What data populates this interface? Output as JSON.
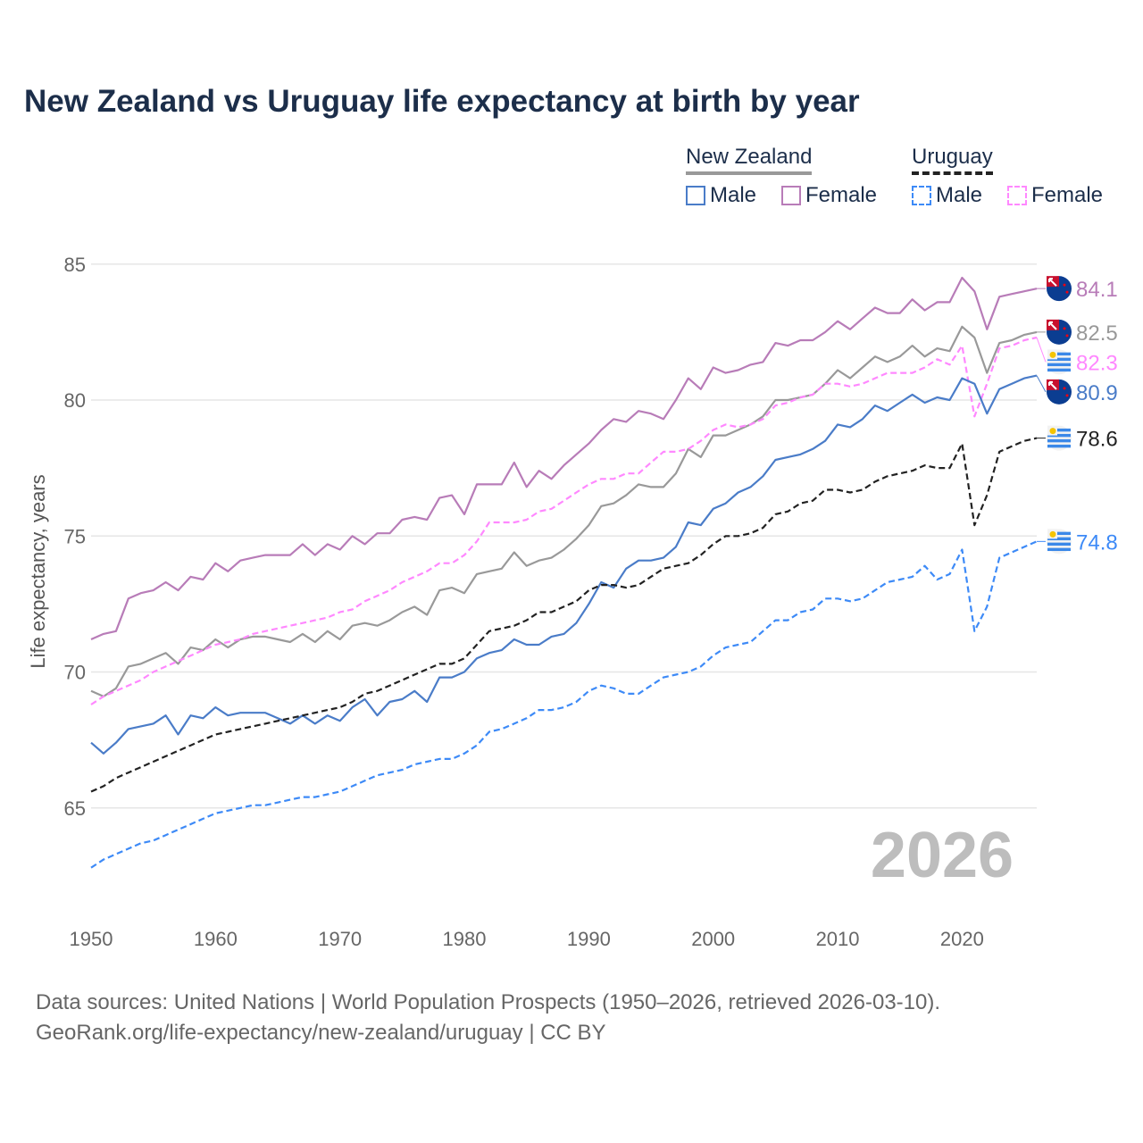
{
  "chart_data": {
    "type": "line",
    "title": "New Zealand vs Uruguay life expectancy at birth by year",
    "ylabel": "Life expectancy, years",
    "xlabel": "",
    "xlim": [
      1950,
      2026
    ],
    "ylim": [
      61.5,
      87
    ],
    "x_ticks": [
      1950,
      1960,
      1970,
      1980,
      1990,
      2000,
      2010,
      2020
    ],
    "y_ticks": [
      65,
      70,
      75,
      80,
      85
    ],
    "grid": true,
    "year_watermark": "2026",
    "legend": {
      "placement": "top-right",
      "groups": [
        {
          "country": "New Zealand",
          "items": [
            "Male",
            "Female"
          ]
        },
        {
          "country": "Uruguay",
          "items": [
            "Male",
            "Female"
          ]
        }
      ]
    },
    "x_start": 1950,
    "series": [
      {
        "name": "New Zealand Female",
        "color": "#b87cb8",
        "dashed": false,
        "flag": "nz",
        "end_label": "84.1",
        "values": [
          71.2,
          71.4,
          71.5,
          72.7,
          72.9,
          73.0,
          73.3,
          73.0,
          73.5,
          73.4,
          74.0,
          73.7,
          74.1,
          74.2,
          74.3,
          74.3,
          74.3,
          74.7,
          74.3,
          74.7,
          74.5,
          75.0,
          74.7,
          75.1,
          75.1,
          75.6,
          75.7,
          75.6,
          76.4,
          76.5,
          75.8,
          76.9,
          76.9,
          76.9,
          77.7,
          76.8,
          77.4,
          77.1,
          77.6,
          78.0,
          78.4,
          78.9,
          79.3,
          79.2,
          79.6,
          79.5,
          79.3,
          80.0,
          80.8,
          80.4,
          81.2,
          81.0,
          81.1,
          81.3,
          81.4,
          82.1,
          82.0,
          82.2,
          82.2,
          82.5,
          82.9,
          82.6,
          83.0,
          83.4,
          83.2,
          83.2,
          83.7,
          83.3,
          83.6,
          83.6,
          84.5,
          84.0,
          82.6,
          83.8,
          83.9,
          84.0,
          84.1
        ]
      },
      {
        "name": "New Zealand Total",
        "color": "#999999",
        "dashed": false,
        "flag": "nz",
        "end_label": "82.5",
        "values": [
          69.3,
          69.1,
          69.4,
          70.2,
          70.3,
          70.5,
          70.7,
          70.3,
          70.9,
          70.8,
          71.2,
          70.9,
          71.2,
          71.3,
          71.3,
          71.2,
          71.1,
          71.4,
          71.1,
          71.5,
          71.2,
          71.7,
          71.8,
          71.7,
          71.9,
          72.2,
          72.4,
          72.1,
          73.0,
          73.1,
          72.9,
          73.6,
          73.7,
          73.8,
          74.4,
          73.9,
          74.1,
          74.2,
          74.5,
          74.9,
          75.4,
          76.1,
          76.2,
          76.5,
          76.9,
          76.8,
          76.8,
          77.3,
          78.2,
          77.9,
          78.7,
          78.7,
          78.9,
          79.1,
          79.4,
          80.0,
          80.0,
          80.1,
          80.2,
          80.6,
          81.1,
          80.8,
          81.2,
          81.6,
          81.4,
          81.6,
          82.0,
          81.6,
          81.9,
          81.8,
          82.7,
          82.3,
          81.0,
          82.1,
          82.2,
          82.4,
          82.5
        ]
      },
      {
        "name": "Uruguay Female",
        "color": "#ff88ff",
        "dashed": true,
        "flag": "uy",
        "end_label": "82.3",
        "values": [
          68.8,
          69.1,
          69.3,
          69.5,
          69.7,
          70.0,
          70.2,
          70.4,
          70.6,
          70.8,
          71.0,
          71.1,
          71.2,
          71.4,
          71.5,
          71.6,
          71.7,
          71.8,
          71.9,
          72.0,
          72.2,
          72.3,
          72.6,
          72.8,
          73.0,
          73.3,
          73.5,
          73.7,
          74.0,
          74.0,
          74.3,
          74.8,
          75.5,
          75.5,
          75.5,
          75.6,
          75.9,
          76.0,
          76.3,
          76.6,
          76.9,
          77.1,
          77.1,
          77.3,
          77.3,
          77.7,
          78.1,
          78.1,
          78.2,
          78.5,
          78.9,
          79.1,
          79.0,
          79.1,
          79.3,
          79.8,
          79.9,
          80.1,
          80.2,
          80.6,
          80.6,
          80.5,
          80.6,
          80.8,
          81.0,
          81.0,
          81.0,
          81.2,
          81.5,
          81.3,
          82.0,
          79.4,
          80.6,
          81.9,
          82.0,
          82.2,
          82.3
        ]
      },
      {
        "name": "New Zealand Male",
        "color": "#4a7cc8",
        "dashed": false,
        "flag": "nz",
        "end_label": "80.9",
        "values": [
          67.4,
          67.0,
          67.4,
          67.9,
          68.0,
          68.1,
          68.4,
          67.7,
          68.4,
          68.3,
          68.7,
          68.4,
          68.5,
          68.5,
          68.5,
          68.3,
          68.1,
          68.4,
          68.1,
          68.4,
          68.2,
          68.7,
          69.0,
          68.4,
          68.9,
          69.0,
          69.3,
          68.9,
          69.8,
          69.8,
          70.0,
          70.5,
          70.7,
          70.8,
          71.2,
          71.0,
          71.0,
          71.3,
          71.4,
          71.8,
          72.5,
          73.3,
          73.1,
          73.8,
          74.1,
          74.1,
          74.2,
          74.6,
          75.5,
          75.4,
          76.0,
          76.2,
          76.6,
          76.8,
          77.2,
          77.8,
          77.9,
          78.0,
          78.2,
          78.5,
          79.1,
          79.0,
          79.3,
          79.8,
          79.6,
          79.9,
          80.2,
          79.9,
          80.1,
          80.0,
          80.8,
          80.6,
          79.5,
          80.4,
          80.6,
          80.8,
          80.9
        ]
      },
      {
        "name": "Uruguay Total",
        "color": "#222222",
        "dashed": true,
        "flag": "uy",
        "end_label": "78.6",
        "values": [
          65.6,
          65.8,
          66.1,
          66.3,
          66.5,
          66.7,
          66.9,
          67.1,
          67.3,
          67.5,
          67.7,
          67.8,
          67.9,
          68.0,
          68.1,
          68.2,
          68.3,
          68.4,
          68.5,
          68.6,
          68.7,
          68.9,
          69.2,
          69.3,
          69.5,
          69.7,
          69.9,
          70.1,
          70.3,
          70.3,
          70.5,
          71.0,
          71.5,
          71.6,
          71.7,
          71.9,
          72.2,
          72.2,
          72.4,
          72.6,
          73.0,
          73.2,
          73.2,
          73.1,
          73.2,
          73.5,
          73.8,
          73.9,
          74.0,
          74.3,
          74.7,
          75.0,
          75.0,
          75.1,
          75.3,
          75.8,
          75.9,
          76.2,
          76.3,
          76.7,
          76.7,
          76.6,
          76.7,
          77.0,
          77.2,
          77.3,
          77.4,
          77.6,
          77.5,
          77.5,
          78.4,
          75.4,
          76.5,
          78.1,
          78.3,
          78.5,
          78.6
        ]
      },
      {
        "name": "Uruguay Male",
        "color": "#3d8af7",
        "dashed": true,
        "flag": "uy",
        "end_label": "74.8",
        "values": [
          62.8,
          63.1,
          63.3,
          63.5,
          63.7,
          63.8,
          64.0,
          64.2,
          64.4,
          64.6,
          64.8,
          64.9,
          65.0,
          65.1,
          65.1,
          65.2,
          65.3,
          65.4,
          65.4,
          65.5,
          65.6,
          65.8,
          66.0,
          66.2,
          66.3,
          66.4,
          66.6,
          66.7,
          66.8,
          66.8,
          67.0,
          67.3,
          67.8,
          67.9,
          68.1,
          68.3,
          68.6,
          68.6,
          68.7,
          68.9,
          69.3,
          69.5,
          69.4,
          69.2,
          69.2,
          69.5,
          69.8,
          69.9,
          70.0,
          70.2,
          70.6,
          70.9,
          71.0,
          71.1,
          71.5,
          71.9,
          71.9,
          72.2,
          72.3,
          72.7,
          72.7,
          72.6,
          72.7,
          73.0,
          73.3,
          73.4,
          73.5,
          73.9,
          73.4,
          73.6,
          74.5,
          71.5,
          72.4,
          74.2,
          74.4,
          74.6,
          74.8
        ]
      }
    ]
  },
  "legend": {
    "nz_label": "New Zealand",
    "uy_label": "Uruguay",
    "male": "Male",
    "female": "Female"
  },
  "source": {
    "line1": "Data sources: United Nations | World Population Prospects (1950–2026, retrieved 2026-03-10).",
    "line2": "GeoRank.org/life-expectancy/new-zealand/uruguay | CC BY"
  }
}
